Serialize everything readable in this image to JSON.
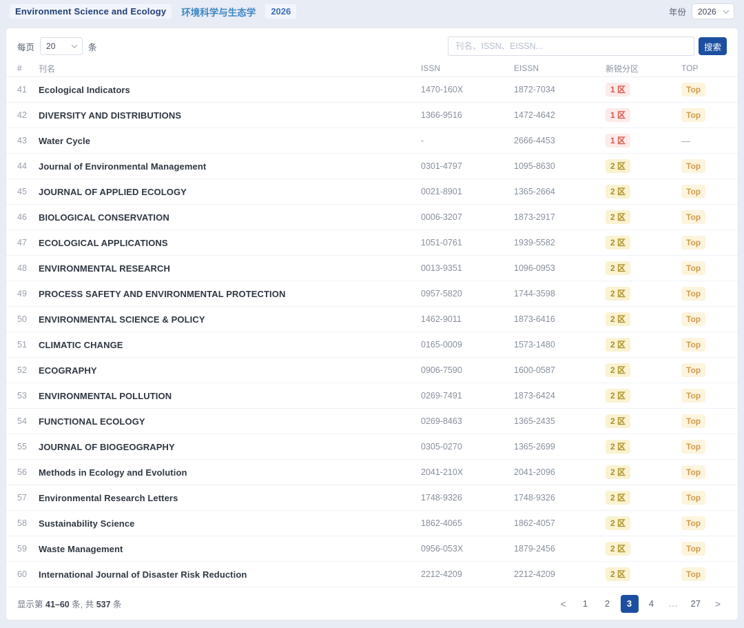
{
  "header": {
    "category_en": "Environment Science and Ecology",
    "category_zh": "环境科学与生态学",
    "year_tag": "2026",
    "year_label": "年份",
    "year_value": "2026"
  },
  "toolbar": {
    "per_page_label": "每页",
    "per_page_value": "20",
    "per_page_unit": "条",
    "search_placeholder": "刊名、ISSN、EISSN...",
    "search_button_label": "搜索"
  },
  "table": {
    "columns": [
      "#",
      "刊名",
      "ISSN",
      "EISSN",
      "新锐分区",
      "TOP"
    ],
    "no_top_placeholder": "—",
    "rows": [
      {
        "num": "41",
        "name": "Ecological Indicators",
        "issn": "1470-160X",
        "eissn": "1872-7034",
        "zone": "1 区",
        "zone_level": "1",
        "top": "Top"
      },
      {
        "num": "42",
        "name": "DIVERSITY AND DISTRIBUTIONS",
        "issn": "1366-9516",
        "eissn": "1472-4642",
        "zone": "1 区",
        "zone_level": "1",
        "top": "Top"
      },
      {
        "num": "43",
        "name": "Water Cycle",
        "issn": "-",
        "eissn": "2666-4453",
        "zone": "1 区",
        "zone_level": "1",
        "top": null
      },
      {
        "num": "44",
        "name": "Journal of Environmental Management",
        "issn": "0301-4797",
        "eissn": "1095-8630",
        "zone": "2 区",
        "zone_level": "2",
        "top": "Top"
      },
      {
        "num": "45",
        "name": "JOURNAL OF APPLIED ECOLOGY",
        "issn": "0021-8901",
        "eissn": "1365-2664",
        "zone": "2 区",
        "zone_level": "2",
        "top": "Top"
      },
      {
        "num": "46",
        "name": "BIOLOGICAL CONSERVATION",
        "issn": "0006-3207",
        "eissn": "1873-2917",
        "zone": "2 区",
        "zone_level": "2",
        "top": "Top"
      },
      {
        "num": "47",
        "name": "ECOLOGICAL APPLICATIONS",
        "issn": "1051-0761",
        "eissn": "1939-5582",
        "zone": "2 区",
        "zone_level": "2",
        "top": "Top"
      },
      {
        "num": "48",
        "name": "ENVIRONMENTAL RESEARCH",
        "issn": "0013-9351",
        "eissn": "1096-0953",
        "zone": "2 区",
        "zone_level": "2",
        "top": "Top"
      },
      {
        "num": "49",
        "name": "PROCESS SAFETY AND ENVIRONMENTAL PROTECTION",
        "issn": "0957-5820",
        "eissn": "1744-3598",
        "zone": "2 区",
        "zone_level": "2",
        "top": "Top"
      },
      {
        "num": "50",
        "name": "ENVIRONMENTAL SCIENCE & POLICY",
        "issn": "1462-9011",
        "eissn": "1873-6416",
        "zone": "2 区",
        "zone_level": "2",
        "top": "Top"
      },
      {
        "num": "51",
        "name": "CLIMATIC CHANGE",
        "issn": "0165-0009",
        "eissn": "1573-1480",
        "zone": "2 区",
        "zone_level": "2",
        "top": "Top"
      },
      {
        "num": "52",
        "name": "ECOGRAPHY",
        "issn": "0906-7590",
        "eissn": "1600-0587",
        "zone": "2 区",
        "zone_level": "2",
        "top": "Top"
      },
      {
        "num": "53",
        "name": "ENVIRONMENTAL POLLUTION",
        "issn": "0269-7491",
        "eissn": "1873-6424",
        "zone": "2 区",
        "zone_level": "2",
        "top": "Top"
      },
      {
        "num": "54",
        "name": "FUNCTIONAL ECOLOGY",
        "issn": "0269-8463",
        "eissn": "1365-2435",
        "zone": "2 区",
        "zone_level": "2",
        "top": "Top"
      },
      {
        "num": "55",
        "name": "JOURNAL OF BIOGEOGRAPHY",
        "issn": "0305-0270",
        "eissn": "1365-2699",
        "zone": "2 区",
        "zone_level": "2",
        "top": "Top"
      },
      {
        "num": "56",
        "name": "Methods in Ecology and Evolution",
        "issn": "2041-210X",
        "eissn": "2041-2096",
        "zone": "2 区",
        "zone_level": "2",
        "top": "Top"
      },
      {
        "num": "57",
        "name": "Environmental Research Letters",
        "issn": "1748-9326",
        "eissn": "1748-9326",
        "zone": "2 区",
        "zone_level": "2",
        "top": "Top"
      },
      {
        "num": "58",
        "name": "Sustainability Science",
        "issn": "1862-4065",
        "eissn": "1862-4057",
        "zone": "2 区",
        "zone_level": "2",
        "top": "Top"
      },
      {
        "num": "59",
        "name": "Waste Management",
        "issn": "0956-053X",
        "eissn": "1879-2456",
        "zone": "2 区",
        "zone_level": "2",
        "top": "Top"
      },
      {
        "num": "60",
        "name": "International Journal of Disaster Risk Reduction",
        "issn": "2212-4209",
        "eissn": "2212-4209",
        "zone": "2 区",
        "zone_level": "2",
        "top": "Top"
      }
    ]
  },
  "footer": {
    "summary_prefix": "显示第",
    "summary_range": "41–60",
    "summary_mid": "条, 共",
    "summary_total": "537",
    "summary_suffix": "条"
  },
  "pagination": {
    "items": [
      {
        "label": "<",
        "name": "prev-page-button",
        "interactable": true,
        "type": "nav"
      },
      {
        "label": "1",
        "name": "page-button-1",
        "interactable": true
      },
      {
        "label": "2",
        "name": "page-button-2",
        "interactable": true
      },
      {
        "label": "3",
        "name": "page-button-3",
        "interactable": true,
        "active": true
      },
      {
        "label": "4",
        "name": "page-button-4",
        "interactable": true
      },
      {
        "label": "...",
        "name": "page-ellipsis",
        "interactable": false,
        "type": "ellipsis"
      },
      {
        "label": "27",
        "name": "page-button-27",
        "interactable": true
      },
      {
        "label": ">",
        "name": "next-page-button",
        "interactable": true,
        "type": "nav"
      }
    ]
  },
  "colors": {
    "accent_blue": "#1d4fa1",
    "zone1_text": "#d9574d",
    "zone1_bg": "#fcebe9",
    "zone2_text": "#ab9029",
    "zone2_bg": "#faf2d0",
    "top_text": "#d09c4f",
    "top_bg": "#fdf4de",
    "page_bg": "#e8ecf5"
  }
}
